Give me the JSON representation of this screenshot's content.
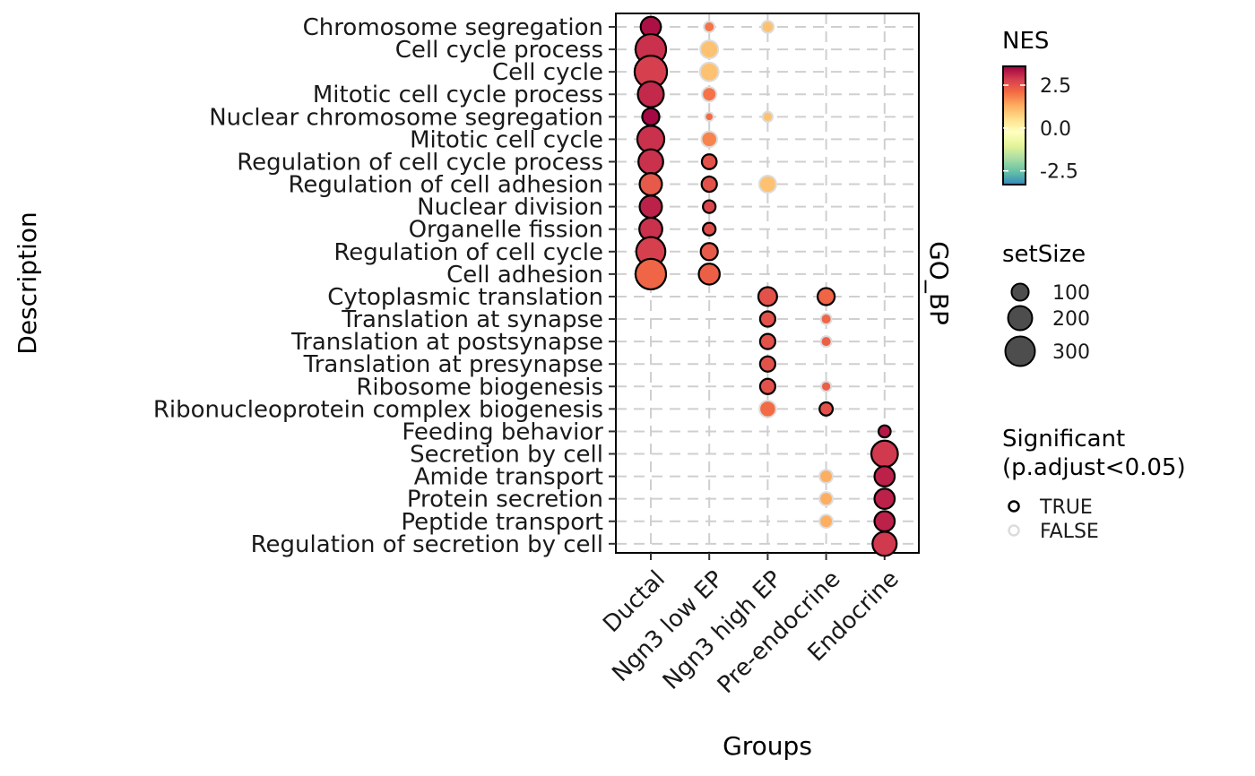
{
  "chart_data": {
    "type": "scatter",
    "xlabel": "Groups",
    "ylabel": "Description",
    "facet_label": "GO_BP",
    "groups": [
      "Ductal",
      "Ngn3 low EP",
      "Ngn3 high EP",
      "Pre-endocrine",
      "Endocrine"
    ],
    "descriptions": [
      "Chromosome segregation",
      "Cell cycle process",
      "Cell cycle",
      "Mitotic cell cycle process",
      "Nuclear chromosome segregation",
      "Mitotic cell cycle",
      "Regulation of cell cycle process",
      "Regulation of cell adhesion",
      "Nuclear division",
      "Organelle fission",
      "Regulation of cell cycle",
      "Cell adhesion",
      "Cytoplasmic translation",
      "Translation at synapse",
      "Translation at postsynapse",
      "Translation at presynapse",
      "Ribosome biogenesis",
      "Ribonucleoprotein complex biogenesis",
      "Feeding behavior",
      "Secretion by cell",
      "Amide transport",
      "Protein secretion",
      "Peptide transport",
      "Regulation of secretion by cell"
    ],
    "points": [
      {
        "description": "Chromosome segregation",
        "group": "Ductal",
        "nes": 3.4,
        "setSize": 140,
        "significant": true
      },
      {
        "description": "Chromosome segregation",
        "group": "Ngn3 low EP",
        "nes": 2.0,
        "setSize": 40,
        "significant": false
      },
      {
        "description": "Chromosome segregation",
        "group": "Ngn3 high EP",
        "nes": 1.0,
        "setSize": 50,
        "significant": false
      },
      {
        "description": "Cell cycle process",
        "group": "Ductal",
        "nes": 3.0,
        "setSize": 320,
        "significant": true
      },
      {
        "description": "Cell cycle process",
        "group": "Ngn3 low EP",
        "nes": 1.0,
        "setSize": 110,
        "significant": false
      },
      {
        "description": "Cell cycle",
        "group": "Ductal",
        "nes": 2.8,
        "setSize": 360,
        "significant": true
      },
      {
        "description": "Cell cycle",
        "group": "Ngn3 low EP",
        "nes": 1.0,
        "setSize": 120,
        "significant": false
      },
      {
        "description": "Mitotic cell cycle process",
        "group": "Ductal",
        "nes": 3.1,
        "setSize": 230,
        "significant": true
      },
      {
        "description": "Mitotic cell cycle process",
        "group": "Ngn3 low EP",
        "nes": 2.0,
        "setSize": 70,
        "significant": false
      },
      {
        "description": "Nuclear chromosome segregation",
        "group": "Ductal",
        "nes": 3.5,
        "setSize": 100,
        "significant": true
      },
      {
        "description": "Nuclear chromosome segregation",
        "group": "Ngn3 low EP",
        "nes": 2.1,
        "setSize": 25,
        "significant": false
      },
      {
        "description": "Nuclear chromosome segregation",
        "group": "Ngn3 high EP",
        "nes": 1.0,
        "setSize": 35,
        "significant": false
      },
      {
        "description": "Mitotic cell cycle",
        "group": "Ductal",
        "nes": 3.0,
        "setSize": 250,
        "significant": true
      },
      {
        "description": "Mitotic cell cycle",
        "group": "Ngn3 low EP",
        "nes": 1.8,
        "setSize": 85,
        "significant": false
      },
      {
        "description": "Regulation of cell cycle process",
        "group": "Ductal",
        "nes": 3.0,
        "setSize": 210,
        "significant": true
      },
      {
        "description": "Regulation of cell cycle process",
        "group": "Ngn3 low EP",
        "nes": 2.5,
        "setSize": 75,
        "significant": true
      },
      {
        "description": "Regulation of cell adhesion",
        "group": "Ductal",
        "nes": 2.4,
        "setSize": 170,
        "significant": true
      },
      {
        "description": "Regulation of cell adhesion",
        "group": "Ngn3 low EP",
        "nes": 2.5,
        "setSize": 80,
        "significant": true
      },
      {
        "description": "Regulation of cell adhesion",
        "group": "Ngn3 high EP",
        "nes": 1.0,
        "setSize": 100,
        "significant": false
      },
      {
        "description": "Nuclear division",
        "group": "Ductal",
        "nes": 3.2,
        "setSize": 170,
        "significant": true
      },
      {
        "description": "Nuclear division",
        "group": "Ngn3 low EP",
        "nes": 2.7,
        "setSize": 55,
        "significant": true
      },
      {
        "description": "Organelle fission",
        "group": "Ductal",
        "nes": 3.0,
        "setSize": 180,
        "significant": true
      },
      {
        "description": "Organelle fission",
        "group": "Ngn3 low EP",
        "nes": 2.6,
        "setSize": 55,
        "significant": true
      },
      {
        "description": "Regulation of cell cycle",
        "group": "Ductal",
        "nes": 2.8,
        "setSize": 290,
        "significant": true
      },
      {
        "description": "Regulation of cell cycle",
        "group": "Ngn3 low EP",
        "nes": 2.4,
        "setSize": 100,
        "significant": true
      },
      {
        "description": "Cell adhesion",
        "group": "Ductal",
        "nes": 2.2,
        "setSize": 320,
        "significant": true
      },
      {
        "description": "Cell adhesion",
        "group": "Ngn3 low EP",
        "nes": 2.3,
        "setSize": 150,
        "significant": true
      },
      {
        "description": "Cytoplasmic translation",
        "group": "Ngn3 high EP",
        "nes": 2.5,
        "setSize": 120,
        "significant": true
      },
      {
        "description": "Cytoplasmic translation",
        "group": "Pre-endocrine",
        "nes": 2.2,
        "setSize": 100,
        "significant": true
      },
      {
        "description": "Translation at synapse",
        "group": "Ngn3 high EP",
        "nes": 2.5,
        "setSize": 80,
        "significant": true
      },
      {
        "description": "Translation at synapse",
        "group": "Pre-endocrine",
        "nes": 2.2,
        "setSize": 40,
        "significant": false
      },
      {
        "description": "Translation at postsynapse",
        "group": "Ngn3 high EP",
        "nes": 2.5,
        "setSize": 80,
        "significant": true
      },
      {
        "description": "Translation at postsynapse",
        "group": "Pre-endocrine",
        "nes": 2.3,
        "setSize": 40,
        "significant": false
      },
      {
        "description": "Translation at presynapse",
        "group": "Ngn3 high EP",
        "nes": 2.5,
        "setSize": 80,
        "significant": true
      },
      {
        "description": "Ribosome biogenesis",
        "group": "Ngn3 high EP",
        "nes": 2.5,
        "setSize": 80,
        "significant": true
      },
      {
        "description": "Ribosome biogenesis",
        "group": "Pre-endocrine",
        "nes": 2.3,
        "setSize": 35,
        "significant": false
      },
      {
        "description": "Ribonucleoprotein complex biogenesis",
        "group": "Ngn3 high EP",
        "nes": 2.1,
        "setSize": 95,
        "significant": false
      },
      {
        "description": "Ribonucleoprotein complex biogenesis",
        "group": "Pre-endocrine",
        "nes": 2.5,
        "setSize": 60,
        "significant": true
      },
      {
        "description": "Feeding behavior",
        "group": "Endocrine",
        "nes": 3.3,
        "setSize": 50,
        "significant": true
      },
      {
        "description": "Secretion by cell",
        "group": "Endocrine",
        "nes": 2.9,
        "setSize": 240,
        "significant": true
      },
      {
        "description": "Amide transport",
        "group": "Pre-endocrine",
        "nes": 1.3,
        "setSize": 60,
        "significant": false
      },
      {
        "description": "Amide transport",
        "group": "Endocrine",
        "nes": 3.2,
        "setSize": 140,
        "significant": true
      },
      {
        "description": "Protein secretion",
        "group": "Pre-endocrine",
        "nes": 1.3,
        "setSize": 60,
        "significant": false
      },
      {
        "description": "Protein secretion",
        "group": "Endocrine",
        "nes": 3.2,
        "setSize": 140,
        "significant": true
      },
      {
        "description": "Peptide transport",
        "group": "Pre-endocrine",
        "nes": 1.3,
        "setSize": 60,
        "significant": false
      },
      {
        "description": "Peptide transport",
        "group": "Endocrine",
        "nes": 3.2,
        "setSize": 140,
        "significant": true
      },
      {
        "description": "Regulation of secretion by cell",
        "group": "Endocrine",
        "nes": 2.9,
        "setSize": 200,
        "significant": true
      }
    ],
    "legend": {
      "color": {
        "title": "NES",
        "ticks": [
          2.5,
          0.0,
          -2.5
        ],
        "tick_labels": [
          "2.5",
          "0.0",
          "-2.5"
        ],
        "range": [
          -3.3,
          3.6
        ],
        "colors": [
          "#3288bd",
          "#66c2a5",
          "#abdda4",
          "#e6f598",
          "#ffffbf",
          "#fee08b",
          "#fdae61",
          "#f46d43",
          "#d53e4f",
          "#9e0142"
        ]
      },
      "size": {
        "title": "setSize",
        "values": [
          100,
          200,
          300
        ],
        "labels": [
          "100",
          "200",
          "300"
        ]
      },
      "significant": {
        "title_line1": "Significant",
        "title_line2": "(p.adjust<0.05)",
        "labels": [
          "TRUE",
          "FALSE"
        ],
        "stroke_true": "#000000",
        "stroke_false": "#dcdcdc"
      }
    },
    "grid": true
  }
}
